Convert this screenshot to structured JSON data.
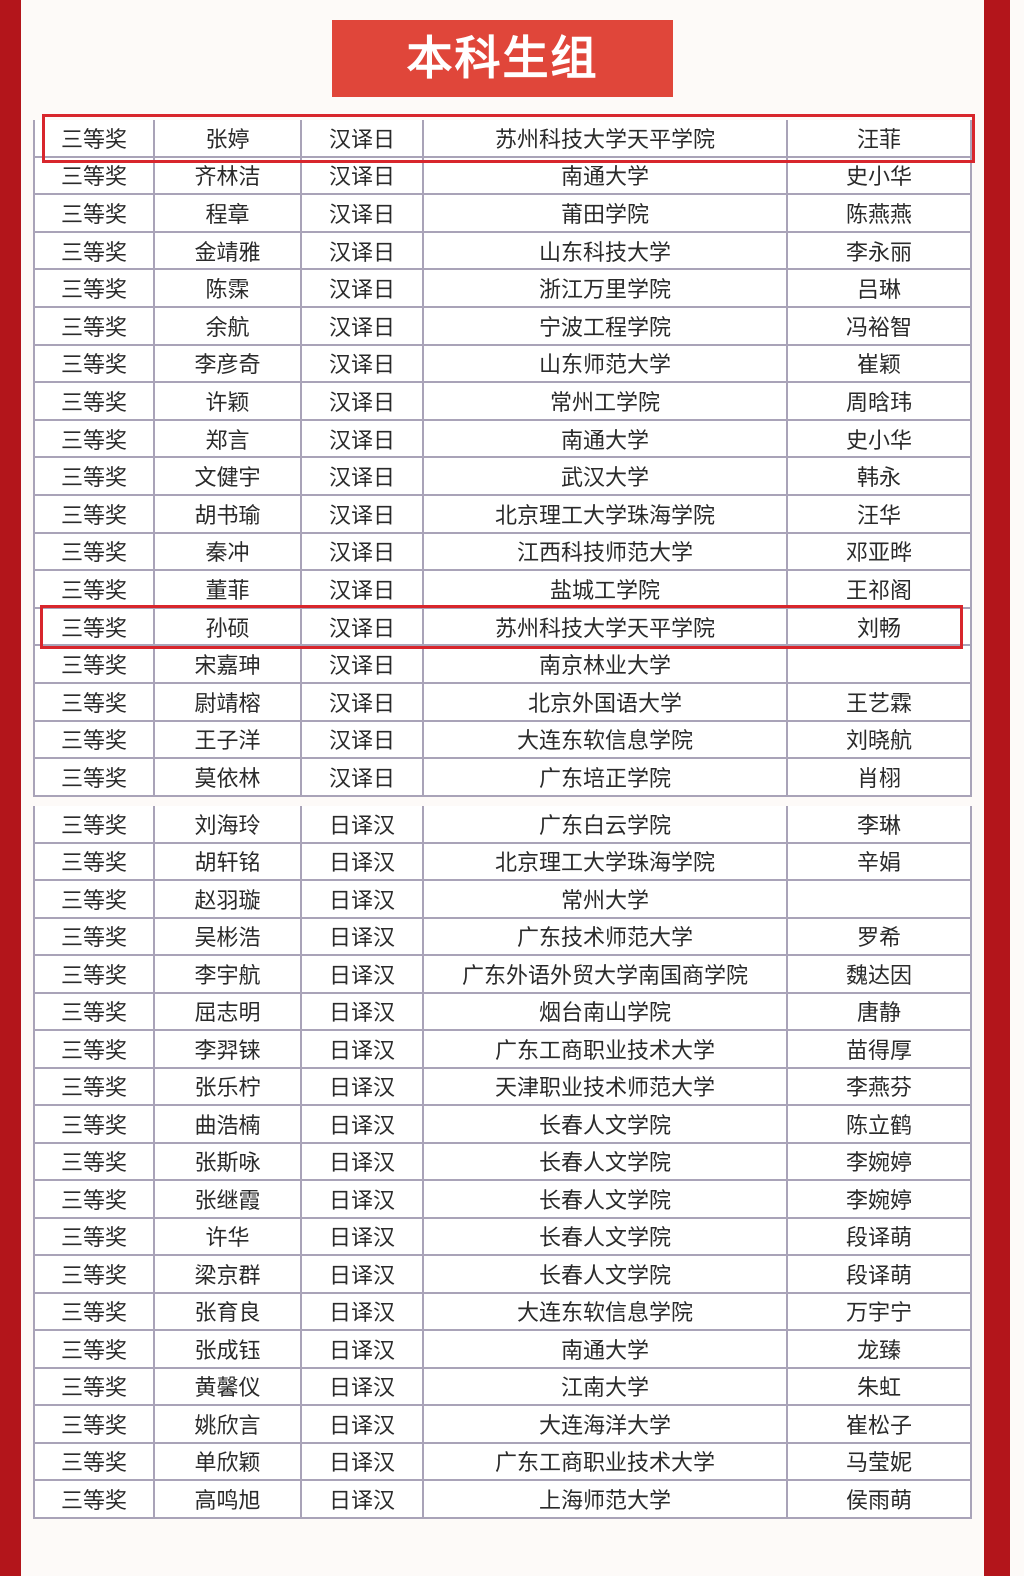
{
  "header": {
    "title": "本科生组"
  },
  "tables": [
    {
      "rows": [
        [
          "三等奖",
          "张婷",
          "汉译日",
          "苏州科技大学天平学院",
          "汪菲"
        ],
        [
          "三等奖",
          "齐林洁",
          "汉译日",
          "南通大学",
          "史小华"
        ],
        [
          "三等奖",
          "程章",
          "汉译日",
          "莆田学院",
          "陈燕燕"
        ],
        [
          "三等奖",
          "金靖雅",
          "汉译日",
          "山东科技大学",
          "李永丽"
        ],
        [
          "三等奖",
          "陈霂",
          "汉译日",
          "浙江万里学院",
          "吕琳"
        ],
        [
          "三等奖",
          "余航",
          "汉译日",
          "宁波工程学院",
          "冯裕智"
        ],
        [
          "三等奖",
          "李彦奇",
          "汉译日",
          "山东师范大学",
          "崔颖"
        ],
        [
          "三等奖",
          "许颖",
          "汉译日",
          "常州工学院",
          "周晗玮"
        ],
        [
          "三等奖",
          "郑言",
          "汉译日",
          "南通大学",
          "史小华"
        ],
        [
          "三等奖",
          "文健宇",
          "汉译日",
          "武汉大学",
          "韩永"
        ],
        [
          "三等奖",
          "胡书瑜",
          "汉译日",
          "北京理工大学珠海学院",
          "汪华"
        ],
        [
          "三等奖",
          "秦冲",
          "汉译日",
          "江西科技师范大学",
          "邓亚晔"
        ],
        [
          "三等奖",
          "董菲",
          "汉译日",
          "盐城工学院",
          "王祁阁"
        ],
        [
          "三等奖",
          "孙硕",
          "汉译日",
          "苏州科技大学天平学院",
          "刘畅"
        ],
        [
          "三等奖",
          "宋嘉珅",
          "汉译日",
          "南京林业大学"
        ],
        [
          "三等奖",
          "尉靖榕",
          "汉译日",
          "北京外国语大学",
          "王艺霖"
        ],
        [
          "三等奖",
          "王子洋",
          "汉译日",
          "大连东软信息学院",
          "刘晓航"
        ],
        [
          "三等奖",
          "莫依林",
          "汉译日",
          "广东培正学院",
          "肖栩"
        ]
      ]
    },
    {
      "rows": [
        [
          "三等奖",
          "刘海玲",
          "日译汉",
          "广东白云学院",
          "李琳"
        ],
        [
          "三等奖",
          "胡轩铭",
          "日译汉",
          "北京理工大学珠海学院",
          "辛娟"
        ],
        [
          "三等奖",
          "赵羽璇",
          "日译汉",
          "常州大学"
        ],
        [
          "三等奖",
          "吴彬浩",
          "日译汉",
          "广东技术师范大学",
          "罗希"
        ],
        [
          "三等奖",
          "李宇航",
          "日译汉",
          "广东外语外贸大学南国商学院",
          "魏达因"
        ],
        [
          "三等奖",
          "屈志明",
          "日译汉",
          "烟台南山学院",
          "唐静"
        ],
        [
          "三等奖",
          "李羿铼",
          "日译汉",
          "广东工商职业技术大学",
          "苗得厚"
        ],
        [
          "三等奖",
          "张乐柠",
          "日译汉",
          "天津职业技术师范大学",
          "李燕芬"
        ],
        [
          "三等奖",
          "曲浩楠",
          "日译汉",
          "长春人文学院",
          "陈立鹤"
        ],
        [
          "三等奖",
          "张斯咏",
          "日译汉",
          "长春人文学院",
          "李婉婷"
        ],
        [
          "三等奖",
          "张继霞",
          "日译汉",
          "长春人文学院",
          "李婉婷"
        ],
        [
          "三等奖",
          "许华",
          "日译汉",
          "长春人文学院",
          "段译萌"
        ],
        [
          "三等奖",
          "梁京群",
          "日译汉",
          "长春人文学院",
          "段译萌"
        ],
        [
          "三等奖",
          "张育良",
          "日译汉",
          "大连东软信息学院",
          "万宇宁"
        ],
        [
          "三等奖",
          "张成钰",
          "日译汉",
          "南通大学",
          "龙臻"
        ],
        [
          "三等奖",
          "黄馨仪",
          "日译汉",
          "江南大学",
          "朱虹"
        ],
        [
          "三等奖",
          "姚欣言",
          "日译汉",
          "大连海洋大学",
          "崔松子"
        ],
        [
          "三等奖",
          "单欣颖",
          "日译汉",
          "广东工商职业技术大学",
          "马莹妮"
        ],
        [
          "三等奖",
          "高鸣旭",
          "日译汉",
          "上海师范大学",
          "侯雨萌"
        ]
      ]
    }
  ]
}
